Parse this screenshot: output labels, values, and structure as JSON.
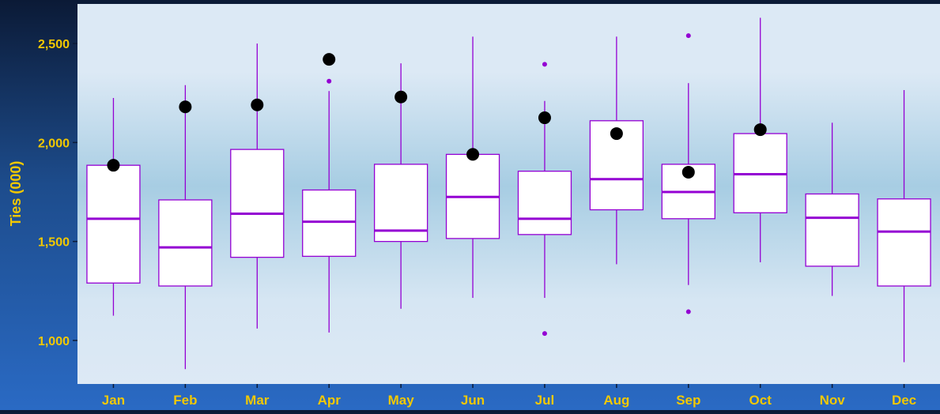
{
  "colors": {
    "box_stroke": "#9400d3",
    "box_fill": "#ffffff",
    "median": "#9400d3",
    "current_point": "#000000",
    "outlier": "#9400d3",
    "label_text": "#f2c800"
  },
  "chart_data": {
    "type": "boxplot",
    "ylabel": "Ties (000)",
    "xlabel": "",
    "ylim": [
      780,
      2700
    ],
    "yticks": [
      1000,
      1500,
      2000,
      2500
    ],
    "ytick_labels": [
      "1,000",
      "1,500",
      "2,000",
      "2,500"
    ],
    "categories": [
      "Jan",
      "Feb",
      "Mar",
      "Apr",
      "May",
      "Jun",
      "Jul",
      "Aug",
      "Sep",
      "Oct",
      "Nov",
      "Dec"
    ],
    "boxes": [
      {
        "month": "Jan",
        "min": 1125,
        "q1": 1290,
        "median": 1615,
        "q3": 1885,
        "max": 2225,
        "outliers": [],
        "current": 1885
      },
      {
        "month": "Feb",
        "min": 855,
        "q1": 1275,
        "median": 1470,
        "q3": 1710,
        "max": 2290,
        "outliers": [],
        "current": 2180
      },
      {
        "month": "Mar",
        "min": 1060,
        "q1": 1420,
        "median": 1640,
        "q3": 1965,
        "max": 2500,
        "outliers": [],
        "current": 2190
      },
      {
        "month": "Apr",
        "min": 1040,
        "q1": 1425,
        "median": 1600,
        "q3": 1760,
        "max": 2260,
        "outliers": [
          2310
        ],
        "current": 2420
      },
      {
        "month": "May",
        "min": 1160,
        "q1": 1500,
        "median": 1555,
        "q3": 1890,
        "max": 2400,
        "outliers": [],
        "current": 2230
      },
      {
        "month": "Jun",
        "min": 1215,
        "q1": 1515,
        "median": 1725,
        "q3": 1940,
        "max": 2535,
        "outliers": [],
        "current": 1940
      },
      {
        "month": "Jul",
        "min": 1215,
        "q1": 1535,
        "median": 1615,
        "q3": 1855,
        "max": 2210,
        "outliers": [
          2395,
          1035
        ],
        "current": 2125
      },
      {
        "month": "Aug",
        "min": 1385,
        "q1": 1660,
        "median": 1815,
        "q3": 2110,
        "max": 2535,
        "outliers": [],
        "current": 2045
      },
      {
        "month": "Sep",
        "min": 1280,
        "q1": 1615,
        "median": 1750,
        "q3": 1890,
        "max": 2300,
        "outliers": [
          2540,
          1145
        ],
        "current": 1850
      },
      {
        "month": "Oct",
        "min": 1395,
        "q1": 1645,
        "median": 1840,
        "q3": 2045,
        "max": 2630,
        "outliers": [],
        "current": 2065
      },
      {
        "month": "Nov",
        "min": 1225,
        "q1": 1375,
        "median": 1620,
        "q3": 1740,
        "max": 2100,
        "outliers": [],
        "current": null
      },
      {
        "month": "Dec",
        "min": 890,
        "q1": 1275,
        "median": 1550,
        "q3": 1715,
        "max": 2265,
        "outliers": [],
        "current": null
      }
    ]
  }
}
